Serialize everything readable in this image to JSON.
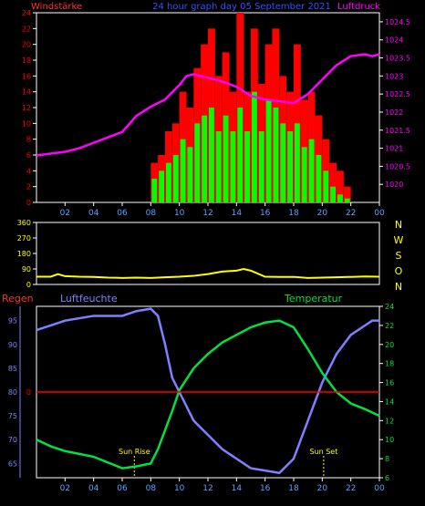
{
  "header": {
    "left_label": "Windstärke",
    "title": "24 hour graph day 05 September 2021",
    "right_label": "Luftdruck"
  },
  "colors": {
    "background": "#000000",
    "wind_gust": "#ff0000",
    "wind_avg": "#00ff00",
    "wind_min": "#007700",
    "pressure": "#ff00ff",
    "wind_dir": "#ffff00",
    "humidity": "#8080ff",
    "temperature": "#00e040",
    "rain": "#ff0000",
    "axis": "#ffffff",
    "sun_marker": "#ffff00",
    "x_ticks": "#5fa0ff",
    "compass": "#ffff00"
  },
  "x_ticks": [
    "02",
    "04",
    "06",
    "08",
    "10",
    "12",
    "14",
    "16",
    "18",
    "20",
    "22",
    "00"
  ],
  "chart_data": [
    {
      "type": "bar",
      "title": "24 hour graph day 05 September 2021",
      "x_range_hours": [
        0,
        24
      ],
      "left_axis": {
        "label": "Windstärke",
        "ylim": [
          0,
          24
        ],
        "ticks": [
          0,
          2,
          4,
          6,
          8,
          10,
          12,
          14,
          16,
          18,
          20,
          22,
          24
        ]
      },
      "right_axis": {
        "label": "Luftdruck",
        "ylim": [
          1019.5,
          1024.75
        ],
        "ticks": [
          1020,
          1020.5,
          1021,
          1021.5,
          1022,
          1022.5,
          1023,
          1023.5,
          1024,
          1024.5
        ]
      },
      "series": [
        {
          "name": "Windstärke",
          "kind": "bars",
          "hours": [
            8,
            8.5,
            9,
            9.5,
            10,
            10.5,
            11,
            11.5,
            12,
            12.5,
            13,
            13.5,
            14,
            14.5,
            15,
            15.5,
            16,
            16.5,
            17,
            17.5,
            18,
            18.5,
            19,
            19.5,
            20,
            20.5,
            21,
            21.5
          ],
          "gust": [
            5,
            6,
            9,
            10,
            14,
            12,
            17,
            20,
            22,
            16,
            19,
            14,
            24,
            14,
            22,
            15,
            20,
            22,
            16,
            14,
            20,
            13,
            14,
            11,
            8,
            5,
            4,
            2
          ],
          "avg": [
            3,
            4,
            5,
            6,
            8,
            7,
            10,
            11,
            12,
            9,
            11,
            9,
            12,
            9,
            14,
            9,
            13,
            12,
            10,
            9,
            10,
            7,
            8,
            6,
            4,
            2,
            1,
            0.5
          ]
        },
        {
          "name": "Luftdruck",
          "kind": "line",
          "hours": [
            0,
            1,
            2,
            3,
            4,
            5,
            6,
            7,
            8,
            9,
            10,
            10.5,
            11,
            12,
            13,
            14,
            15,
            16,
            17,
            18,
            19,
            20,
            21,
            22,
            23,
            23.5,
            24
          ],
          "values": [
            1020.8,
            1020.85,
            1020.9,
            1021.0,
            1021.15,
            1021.3,
            1021.45,
            1021.9,
            1022.15,
            1022.35,
            1022.75,
            1023.0,
            1023.05,
            1022.95,
            1022.85,
            1022.7,
            1022.45,
            1022.35,
            1022.3,
            1022.25,
            1022.5,
            1022.9,
            1023.3,
            1023.55,
            1023.6,
            1023.55,
            1023.6
          ]
        }
      ]
    },
    {
      "type": "line",
      "title": "",
      "x_range_hours": [
        0,
        24
      ],
      "left_axis": {
        "ylim": [
          0,
          360
        ],
        "ticks": [
          0,
          90,
          180,
          270,
          360
        ]
      },
      "right_labels": [
        "N",
        "W",
        "S",
        "O",
        "N"
      ],
      "series": [
        {
          "name": "Windrichtung",
          "hours": [
            0,
            1,
            1.5,
            2,
            3,
            4,
            5,
            6,
            7,
            8,
            9,
            10,
            11,
            12,
            13,
            14,
            14.5,
            15,
            16,
            17,
            18,
            19,
            20,
            21,
            22,
            23,
            24
          ],
          "values": [
            45,
            45,
            60,
            48,
            45,
            44,
            40,
            38,
            40,
            38,
            42,
            45,
            50,
            60,
            75,
            80,
            90,
            80,
            45,
            44,
            44,
            38,
            40,
            42,
            44,
            46,
            45
          ]
        }
      ]
    },
    {
      "type": "line",
      "title": "",
      "x_range_hours": [
        0,
        24
      ],
      "left_axis": {
        "label": "Luftfeuchte",
        "ylim": [
          62,
          98
        ],
        "ticks": [
          65,
          70,
          75,
          80,
          85,
          90,
          95
        ]
      },
      "right_axis": {
        "label": "Temperatur",
        "ylim": [
          6,
          24
        ],
        "ticks": [
          6,
          8,
          10,
          12,
          14,
          16,
          18,
          20,
          22,
          24
        ]
      },
      "rain_axis": {
        "label": "Regen",
        "ticks": [
          0
        ]
      },
      "series": [
        {
          "name": "Luftfeuchte",
          "axis": "left",
          "hours": [
            0,
            1,
            2,
            3,
            4,
            5,
            6,
            7,
            8,
            8.5,
            9,
            9.5,
            10,
            11,
            12,
            13,
            14,
            15,
            16,
            17,
            18,
            19,
            20,
            21,
            22,
            23,
            23.5,
            24
          ],
          "values": [
            93,
            94,
            95,
            95.5,
            96,
            96,
            96,
            97,
            97.5,
            96,
            90,
            83,
            80,
            74,
            71,
            68,
            66,
            64,
            63.5,
            63,
            66,
            74,
            82,
            88,
            92,
            94,
            95,
            95
          ]
        },
        {
          "name": "Temperatur",
          "axis": "right",
          "hours": [
            0,
            1,
            2,
            3,
            4,
            5,
            6,
            7,
            8,
            8.5,
            9,
            9.5,
            10,
            11,
            12,
            13,
            14,
            15,
            16,
            17,
            18,
            19,
            20,
            21,
            22,
            23,
            24
          ],
          "values": [
            10,
            9.3,
            8.8,
            8.5,
            8.2,
            7.6,
            7,
            7.2,
            7.5,
            9,
            11,
            13,
            15.2,
            17.5,
            19,
            20.2,
            21,
            21.8,
            22.3,
            22.5,
            21.8,
            19.5,
            17,
            15,
            13.8,
            13.2,
            12.5
          ]
        },
        {
          "name": "Regen",
          "axis": "rain",
          "hours": [
            0,
            24
          ],
          "values": [
            0,
            0
          ]
        }
      ],
      "annotations": [
        {
          "label": "Sun Rise",
          "hour": 6.85
        },
        {
          "label": "Sun Set",
          "hour": 20.1
        }
      ]
    }
  ]
}
